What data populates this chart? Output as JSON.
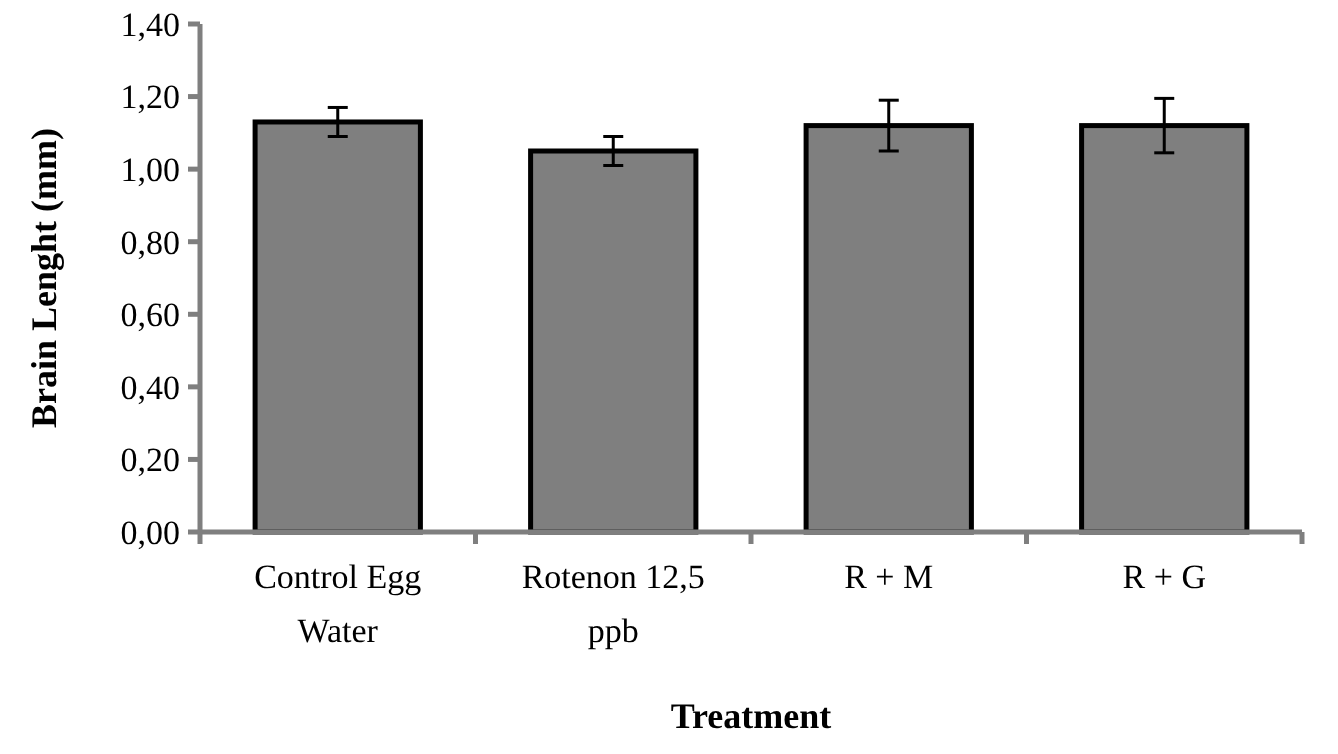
{
  "chart_data": {
    "type": "bar",
    "xlabel": "Treatment",
    "ylabel": "Brain Lenght (mm)",
    "categories": [
      "Control Egg Water",
      "Rotenon 12,5 ppb",
      "R + M",
      "R + G"
    ],
    "values": [
      1.13,
      1.05,
      1.12,
      1.12
    ],
    "errors": [
      0.04,
      0.04,
      0.07,
      0.075
    ],
    "color": "#7f7f7f",
    "ylim": [
      0,
      1.4
    ],
    "yticks": [
      {
        "value": 0,
        "label": "0,00"
      },
      {
        "value": 0.2,
        "label": "0,20"
      },
      {
        "value": 0.4,
        "label": "0,40"
      },
      {
        "value": 0.6,
        "label": "0,60"
      },
      {
        "value": 0.8,
        "label": "0,80"
      },
      {
        "value": 1.0,
        "label": "1,00"
      },
      {
        "value": 1.2,
        "label": "1,20"
      },
      {
        "value": 1.4,
        "label": "1,40"
      }
    ],
    "grid": false
  }
}
